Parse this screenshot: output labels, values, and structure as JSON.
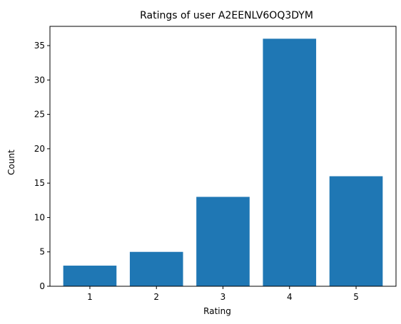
{
  "chart_data": {
    "type": "bar",
    "title": "Ratings of user A2EENLV6OQ3DYM",
    "xlabel": "Rating",
    "ylabel": "Count",
    "categories": [
      "1",
      "2",
      "3",
      "4",
      "5"
    ],
    "values": [
      3,
      5,
      13,
      36,
      16
    ],
    "ylim": [
      0,
      37.8
    ],
    "yticks": [
      0,
      5,
      10,
      15,
      20,
      25,
      30,
      35
    ],
    "grid": false,
    "bar_color": "#1f77b4"
  }
}
